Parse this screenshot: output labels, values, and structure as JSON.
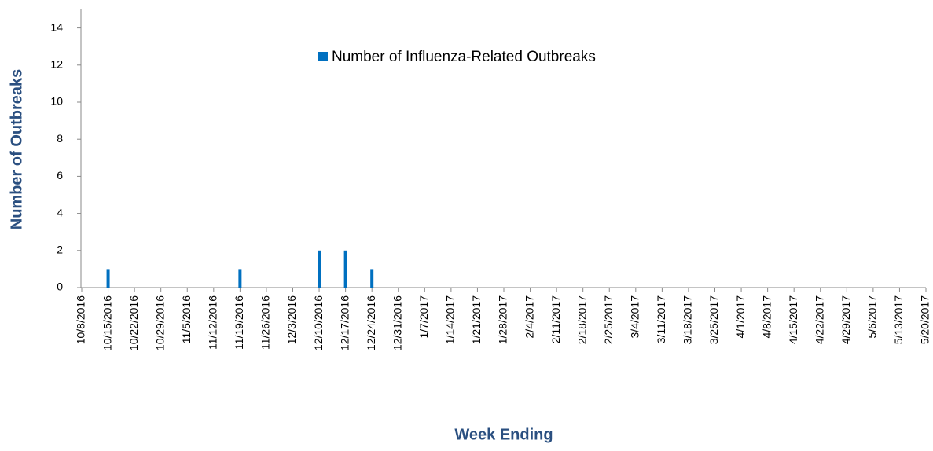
{
  "chart_data": {
    "type": "bar",
    "x_label": "Week Ending",
    "y_label": "Number of Outbreaks",
    "categories": [
      "10/8/2016",
      "10/15/2016",
      "10/22/2016",
      "10/29/2016",
      "11/5/2016",
      "11/12/2016",
      "11/19/2016",
      "11/26/2016",
      "12/3/2016",
      "12/10/2016",
      "12/17/2016",
      "12/24/2016",
      "12/31/2016",
      "1/7/2017",
      "1/14/2017",
      "1/21/2017",
      "1/28/2017",
      "2/4/2017",
      "2/11/2017",
      "2/18/2017",
      "2/25/2017",
      "3/4/2017",
      "3/11/2017",
      "3/18/2017",
      "3/25/2017",
      "4/1/2017",
      "4/8/2017",
      "4/15/2017",
      "4/22/2017",
      "4/29/2017",
      "5/6/2017",
      "5/13/2017",
      "5/20/2017"
    ],
    "series": [
      {
        "name": "Number of Influenza-Related Outbreaks",
        "color": "#0070c0",
        "values": [
          0,
          1,
          0,
          0,
          0,
          0,
          1,
          0,
          0,
          2,
          2,
          1,
          0,
          0,
          0,
          0,
          0,
          0,
          0,
          0,
          0,
          0,
          0,
          0,
          0,
          0,
          0,
          0,
          0,
          0,
          0,
          0,
          0
        ]
      }
    ],
    "ylim": [
      0,
      15
    ],
    "yticks": [
      0,
      2,
      4,
      6,
      8,
      10,
      12,
      14
    ]
  }
}
